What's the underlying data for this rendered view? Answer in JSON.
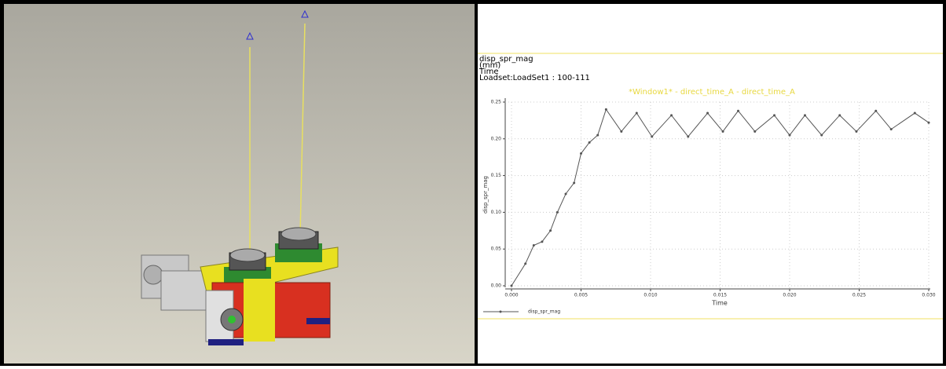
{
  "chart_data": {
    "type": "line",
    "info": [
      "disp_spr_mag",
      "(mm)",
      "Time",
      "Loadset:LoadSet1 : 100-111"
    ],
    "title": "*Window1* - direct_time_A - direct_time_A",
    "x_label": "Time",
    "y_label": "disp_spr_mag",
    "xlim": [
      0,
      0.03
    ],
    "ylim": [
      0,
      0.25
    ],
    "xticks": [
      {
        "value": 0,
        "label": "0.000"
      },
      {
        "value": 0.005,
        "label": "0.005"
      },
      {
        "value": 0.01,
        "label": "0.010"
      },
      {
        "value": 0.015,
        "label": "0.015"
      },
      {
        "value": 0.02,
        "label": "0.020"
      },
      {
        "value": 0.025,
        "label": "0.025"
      },
      {
        "value": 0.03,
        "label": "0.030"
      }
    ],
    "yticks": [
      {
        "value": 0,
        "label": "0.00"
      },
      0.05,
      {
        "value": 0.1,
        "label": "0.10"
      },
      0.15,
      {
        "value": 0.2,
        "label": "0.20"
      },
      0.25
    ],
    "grid": true,
    "series": [
      {
        "name": "disp_spr_mag",
        "color": "#555555",
        "x": [
          0,
          0.001,
          0.0016,
          0.0022,
          0.0028,
          0.0033,
          0.0039,
          0.0045,
          0.005,
          0.0056,
          0.0062,
          0.0068,
          0.0079,
          0.009,
          0.0101,
          0.0115,
          0.0127,
          0.0141,
          0.0152,
          0.0163,
          0.0175,
          0.0189,
          0.02,
          0.0211,
          0.0223,
          0.0236,
          0.0248,
          0.0262,
          0.0273,
          0.029,
          0.03
        ],
        "values": [
          0,
          0.03,
          0.055,
          0.06,
          0.075,
          0.1,
          0.125,
          0.14,
          0.18,
          0.195,
          0.205,
          0.24,
          0.21,
          0.235,
          0.203,
          0.232,
          0.203,
          0.235,
          0.21,
          0.238,
          0.21,
          0.232,
          0.205,
          0.232,
          0.205,
          0.232,
          0.21,
          0.238,
          0.213,
          0.235,
          0.222
        ]
      }
    ]
  }
}
